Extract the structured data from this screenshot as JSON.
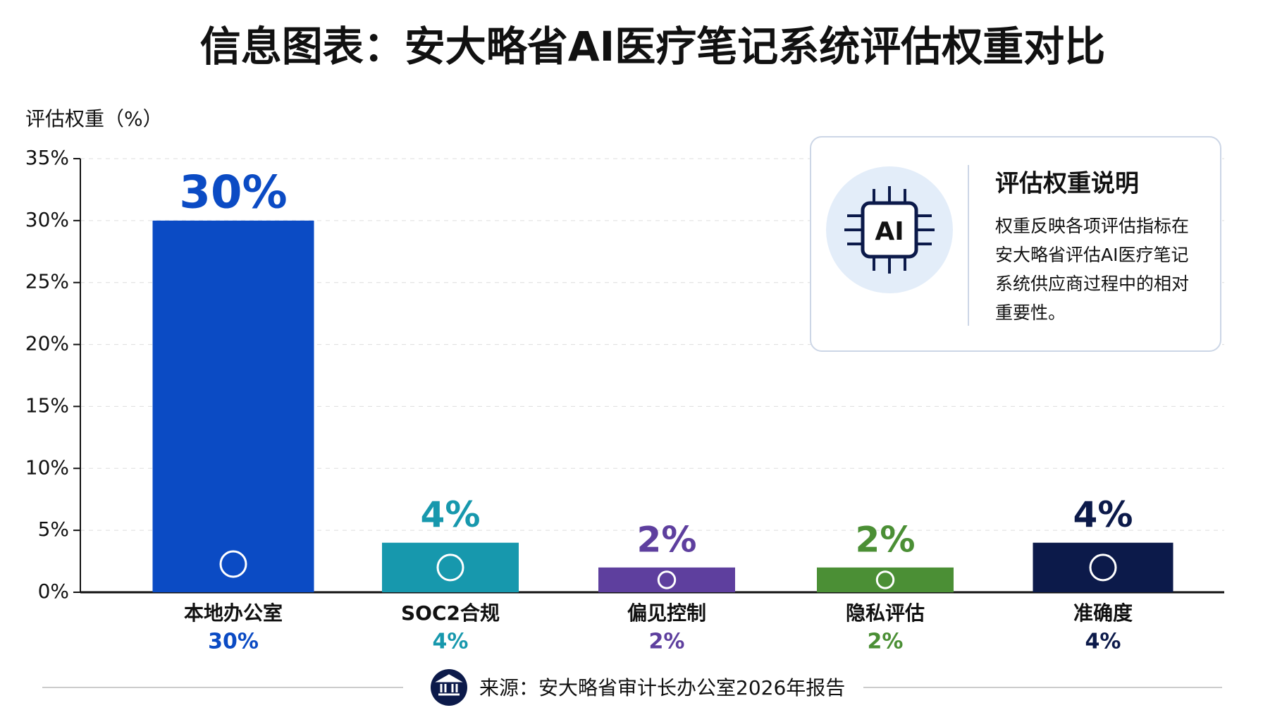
{
  "chart_data": {
    "type": "bar",
    "title": "信息图表：安大略省AI医疗笔记系统评估权重对比",
    "y_label": "评估权重（%）",
    "categories": [
      "本地办公室",
      "SOC2合规",
      "偏见控制",
      "隐私评估",
      "准确度"
    ],
    "values": [
      30,
      4,
      2,
      2,
      4
    ],
    "value_labels": [
      "30%",
      "4%",
      "2%",
      "2%",
      "4%"
    ],
    "colors": [
      "#0b4bc4",
      "#1798ad",
      "#5e3f9e",
      "#4b8f35",
      "#0c1a4a"
    ],
    "ylim": [
      0,
      35
    ],
    "yticks": [
      {
        "value": 0,
        "label": "0%"
      },
      {
        "value": 5,
        "label": "5%"
      },
      {
        "value": 10,
        "label": "10%"
      },
      {
        "value": 15,
        "label": "15%"
      },
      {
        "value": 20,
        "label": "20%"
      },
      {
        "value": 25,
        "label": "25%"
      },
      {
        "value": 30,
        "label": "30%"
      },
      {
        "value": 35,
        "label": "35%"
      }
    ],
    "grid": true,
    "info_box": {
      "icon_text": "AI",
      "title": "评估权重说明",
      "lines": [
        "权重反映各项评估指标在",
        "安大略省评估AI医疗笔记",
        "系统供应商过程中的相对",
        "重要性。"
      ]
    },
    "source": "来源：安大略省审计长办公室2026年报告"
  }
}
